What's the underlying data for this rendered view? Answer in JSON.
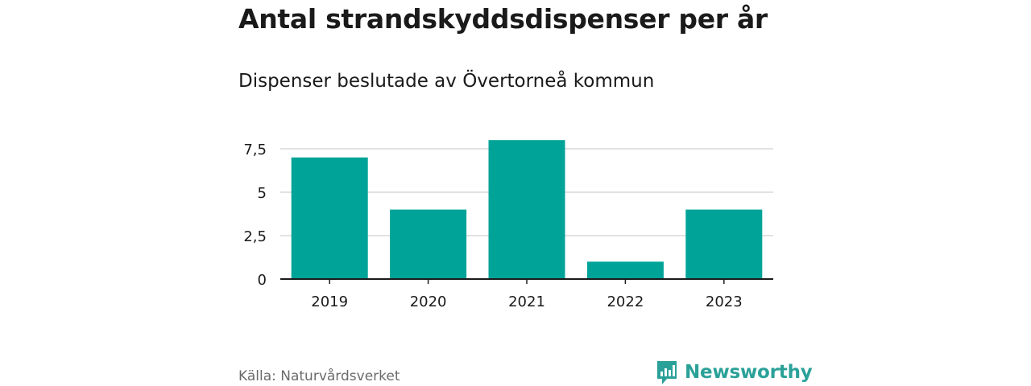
{
  "title": "Antal strandskyddsdispenser per år",
  "subtitle": "Dispenser beslutade av Övertorneå kommun",
  "source": "Källa: Naturvårdsverket",
  "brand": {
    "name": "Newsworthy",
    "icon": "newsworthy-logo-icon",
    "color": "#2aa198"
  },
  "chart_data": {
    "type": "bar",
    "title": "Antal strandskyddsdispenser per år",
    "subtitle": "Dispenser beslutade av Övertorneå kommun",
    "categories": [
      "2019",
      "2020",
      "2021",
      "2022",
      "2023"
    ],
    "values": [
      7,
      4,
      8,
      1,
      4
    ],
    "yticks": [
      0,
      2.5,
      5,
      7.5
    ],
    "ytick_labels": [
      "0",
      "2,5",
      "5",
      "7,5"
    ],
    "ylim": [
      0,
      8
    ],
    "xlabel": "",
    "ylabel": "",
    "grid": true,
    "bar_color": "#00a398"
  }
}
